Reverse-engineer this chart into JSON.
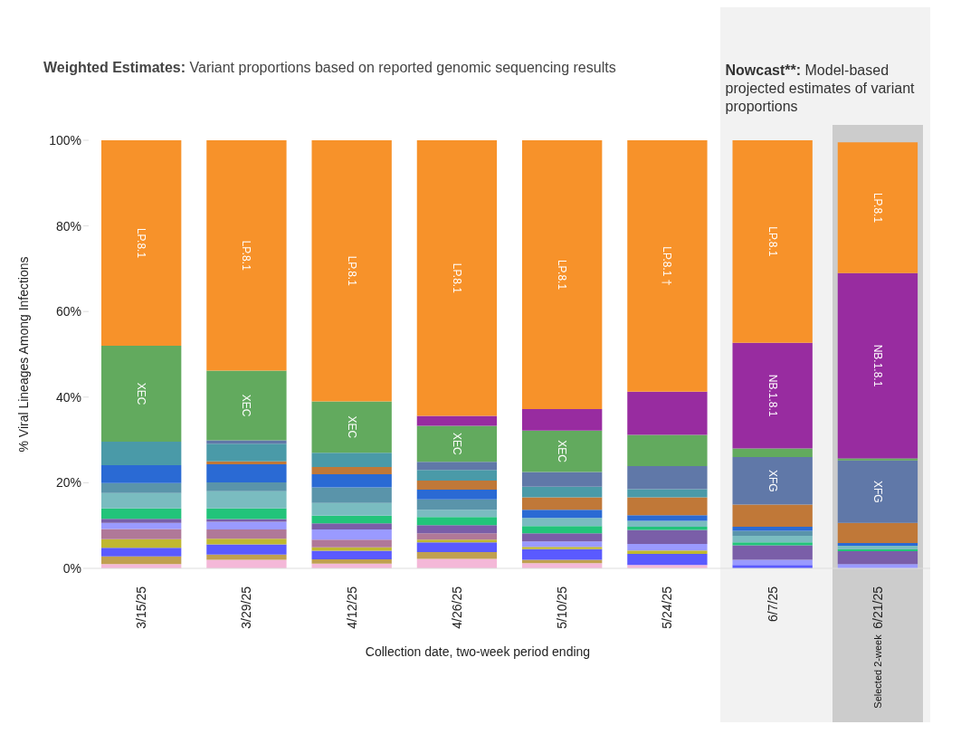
{
  "chart_data": {
    "type": "bar",
    "stacked": true,
    "title": "Weighted Estimates: Variant proportions based on reported genomic sequencing results",
    "xlabel": "Collection date, two-week period ending",
    "ylabel": "% Viral Lineages Among Infections",
    "categories": [
      "3/15/25",
      "3/29/25",
      "4/12/25",
      "4/26/25",
      "5/10/25",
      "5/24/25",
      "6/7/25",
      "6/21/25"
    ],
    "ylim": [
      0,
      100
    ],
    "yticks": [
      {
        "value": 0,
        "label": "0%"
      },
      {
        "value": 20,
        "label": "20%"
      },
      {
        "value": 40,
        "label": "40%"
      },
      {
        "value": 60,
        "label": "60%"
      },
      {
        "value": 80,
        "label": "80%"
      },
      {
        "value": 100,
        "label": "100%"
      }
    ],
    "series": [
      {
        "color": "#f4b8d8",
        "values": [
          1.0,
          2.0,
          1.1,
          2.2,
          1.2,
          0.8,
          0,
          0
        ]
      },
      {
        "color": "#c0a050",
        "values": [
          1.8,
          1.2,
          1.0,
          1.6,
          0.8,
          0,
          0,
          0
        ]
      },
      {
        "color": "#5a5aff",
        "values": [
          2.0,
          2.4,
          2.0,
          2.3,
          2.5,
          2.6,
          0.8,
          null
        ]
      },
      {
        "color": "#c0b830",
        "values": [
          2.0,
          1.3,
          0.8,
          0.6,
          0.5,
          0.8,
          0,
          0
        ]
      },
      {
        "color": "#b07898",
        "values": [
          2.4,
          2.2,
          1.8,
          1.5,
          0,
          0,
          0,
          0
        ]
      },
      {
        "color": "#9a9aff",
        "values": [
          1.4,
          1.8,
          2.4,
          0,
          1.3,
          1.5,
          1.2,
          1.0
        ]
      },
      {
        "color": "#7a5ea8",
        "values": [
          1.0,
          0.6,
          1.4,
          1.9,
          1.9,
          3.3,
          3.4,
          3.0
        ]
      },
      {
        "color": "#22c47a",
        "values": [
          2.4,
          2.5,
          1.8,
          1.9,
          1.7,
          0.7,
          0.7,
          0.5
        ]
      },
      {
        "color": "#7abcc0",
        "values": [
          3.6,
          4.0,
          3.0,
          1.7,
          1.9,
          1.4,
          1.5,
          0.8
        ]
      },
      {
        "color": "#5a94aa",
        "values": [
          2.3,
          2.1,
          3.6,
          2.4,
          0,
          0,
          1.2,
          0
        ]
      },
      {
        "color": "#2a6ad4",
        "values": [
          4.2,
          4.2,
          3.1,
          2.3,
          1.9,
          1.3,
          0.9,
          0.6
        ]
      },
      {
        "color": "#c07838",
        "values": [
          0,
          0.7,
          1.7,
          2.1,
          2.9,
          4.2,
          5.2,
          4.7
        ]
      },
      {
        "color": "#4a9aa8",
        "values": [
          5.5,
          4.1,
          3.3,
          2.5,
          2.5,
          1.9,
          0,
          0
        ]
      },
      {
        "color": "#6078a8",
        "values": [
          0,
          0.8,
          0,
          1.9,
          3.4,
          5.4,
          11.1,
          14.6
        ],
        "value_labels": [
          null,
          null,
          null,
          null,
          null,
          null,
          "XFG",
          "XFG"
        ]
      },
      {
        "color": "#62aa5e",
        "values": [
          22.4,
          16.3,
          12.0,
          8.4,
          9.7,
          7.3,
          2.0,
          0.5
        ],
        "value_labels": [
          "XEC",
          "XEC",
          "XEC",
          "XEC",
          "XEC",
          null,
          null,
          null
        ]
      },
      {
        "color": "#982ca0",
        "values": [
          0,
          0,
          0,
          2.3,
          5.0,
          10.1,
          24.7,
          43.3
        ],
        "value_labels": [
          null,
          null,
          null,
          null,
          null,
          null,
          "NB.1.8.1",
          "NB.1.8.1"
        ]
      },
      {
        "color": "#f7922a",
        "values": [
          48.0,
          53.8,
          61.0,
          64.4,
          62.8,
          58.7,
          47.3,
          30.5
        ],
        "value_labels": [
          "LP.8.1",
          "LP.8.1",
          "LP.8.1",
          "LP.8.1",
          "LP.8.1",
          "LP.8.1 †",
          "LP.8.1",
          "LP.8.1"
        ]
      }
    ],
    "bands": [
      {
        "axis": "x",
        "from": "6/7/25",
        "to": "6/21/25",
        "label": "Nowcast**: Model-based projected estimates of variant proportions",
        "color": "#f2f2f2"
      },
      {
        "axis": "x",
        "from": "6/21/25",
        "to": "6/21/25",
        "label": "Selected 2-week",
        "color": "#cccccc"
      }
    ]
  }
}
